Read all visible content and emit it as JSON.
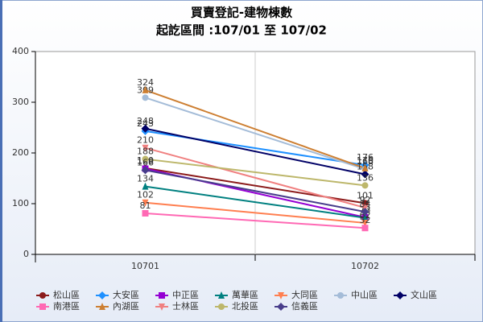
{
  "chart_data": {
    "type": "line",
    "title": "買賣登記-建物棟數",
    "subtitle": "起訖區間 :107/01 至 107/02",
    "categories": [
      "10701",
      "10702"
    ],
    "ylim": [
      0,
      400
    ],
    "yticks": [
      0,
      100,
      200,
      300,
      400
    ],
    "series": [
      {
        "name": "松山區",
        "color": "#8b1a1a",
        "marker": "circle",
        "values": [
          170,
          101
        ]
      },
      {
        "name": "大安區",
        "color": "#1e90ff",
        "marker": "diamond",
        "values": [
          243,
          176
        ]
      },
      {
        "name": "中正區",
        "color": "#9400d3",
        "marker": "square",
        "values": [
          169,
          73
        ]
      },
      {
        "name": "萬華區",
        "color": "#008080",
        "marker": "triangle",
        "values": [
          134,
          72
        ]
      },
      {
        "name": "大同區",
        "color": "#ff7f50",
        "marker": "triangle-down",
        "values": [
          102,
          62
        ]
      },
      {
        "name": "中山區",
        "color": "#a4bcd8",
        "marker": "circle",
        "values": [
          309,
          168
        ]
      },
      {
        "name": "文山區",
        "color": "#000066",
        "marker": "diamond",
        "values": [
          248,
          158
        ]
      },
      {
        "name": "南港區",
        "color": "#ff69b4",
        "marker": "square",
        "values": [
          81,
          52
        ]
      },
      {
        "name": "內湖區",
        "color": "#cd7f32",
        "marker": "triangle",
        "values": [
          324,
          170
        ]
      },
      {
        "name": "士林區",
        "color": "#f08080",
        "marker": "triangle-down",
        "values": [
          210,
          92
        ]
      },
      {
        "name": "北投區",
        "color": "#bdb76b",
        "marker": "circle",
        "values": [
          188,
          136
        ]
      },
      {
        "name": "信義區",
        "color": "#483d8b",
        "marker": "diamond",
        "values": [
          166,
          84
        ]
      }
    ]
  }
}
